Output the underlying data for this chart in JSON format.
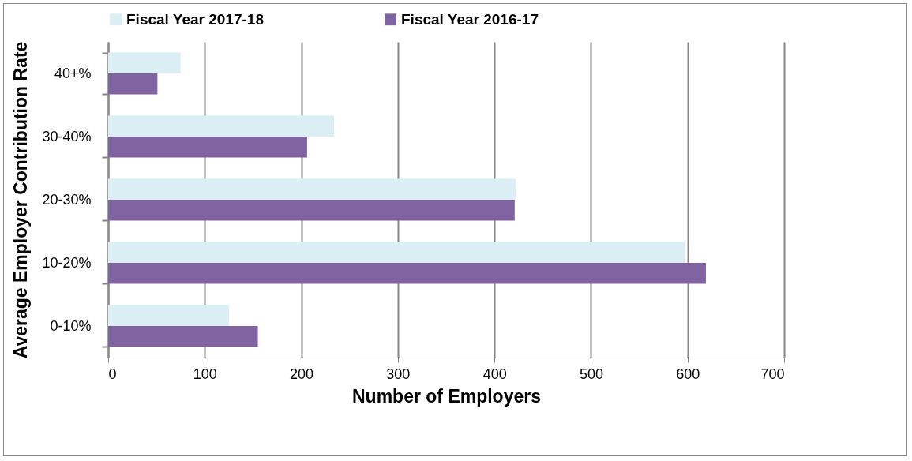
{
  "chart_data": {
    "type": "bar",
    "orientation": "horizontal",
    "xlabel": "Number of Employers",
    "ylabel": "Average Employer Contribution Rate",
    "categories": [
      "40+%",
      "30-40%",
      "20-30%",
      "10-20%",
      "0-10%"
    ],
    "series": [
      {
        "name": "Fiscal Year 2017-18",
        "color": "#daeef3",
        "values": [
          75,
          234,
          422,
          597,
          125
        ]
      },
      {
        "name": "Fiscal Year 2016-17",
        "color": "#8064a2",
        "values": [
          51,
          206,
          421,
          619,
          155
        ]
      }
    ],
    "xlim": [
      0,
      700
    ],
    "xticks": [
      0,
      100,
      200,
      300,
      400,
      500,
      600,
      700
    ],
    "grid": "x",
    "legend": "top"
  }
}
